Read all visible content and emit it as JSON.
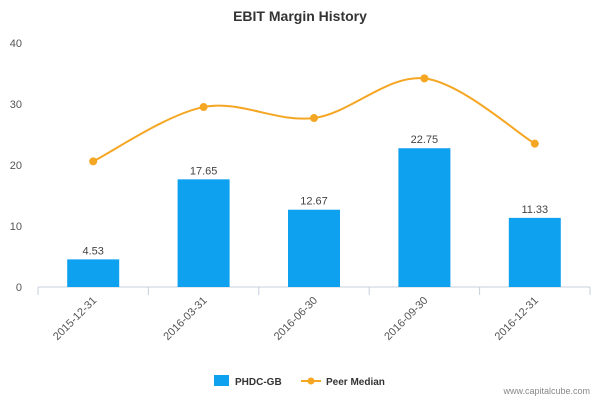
{
  "chart_data": {
    "type": "bar",
    "title": "EBIT Margin History",
    "categories": [
      "2015-12-31",
      "2016-03-31",
      "2016-06-30",
      "2016-09-30",
      "2016-12-31"
    ],
    "series": [
      {
        "name": "PHDC-GB",
        "type": "bar",
        "color": "#0ea1f0",
        "values": [
          4.53,
          17.65,
          12.67,
          22.75,
          11.33
        ],
        "labels": [
          "4.53",
          "17.65",
          "12.67",
          "22.75",
          "11.33"
        ]
      },
      {
        "name": "Peer Median",
        "type": "line",
        "color": "#f5a623",
        "values": [
          20.6,
          29.5,
          27.7,
          34.2,
          23.5
        ]
      }
    ],
    "ylim": [
      0,
      40
    ],
    "yticks": [
      "0",
      "10",
      "20",
      "30",
      "40"
    ],
    "grid": false,
    "legend": "bottom-center"
  },
  "source": "www.capitalcube.com"
}
